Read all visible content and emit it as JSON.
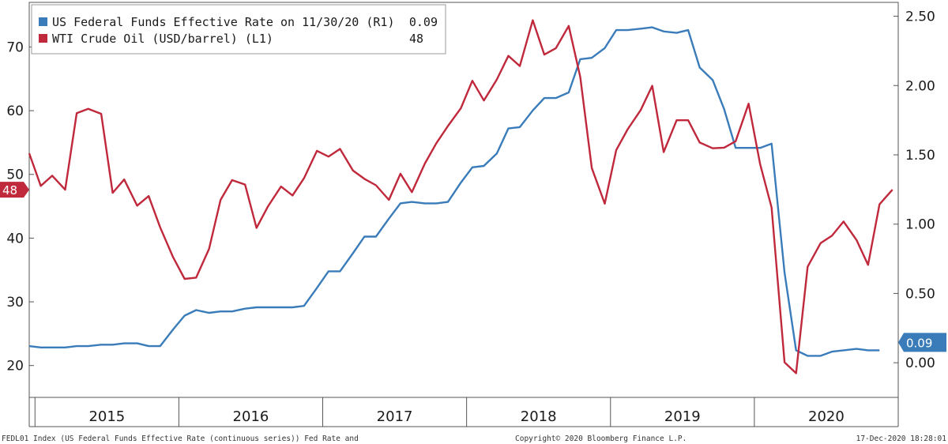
{
  "chart_data": {
    "type": "line",
    "legend_position": "top-left",
    "grid": false,
    "series": [
      {
        "name": "US Federal Funds Effective Rate on 11/30/20 (R1)",
        "legend_value": "0.09",
        "axis": "right",
        "color": "#3a7cba",
        "x": [
          2014.96,
          2015.04,
          2015.12,
          2015.21,
          2015.29,
          2015.37,
          2015.46,
          2015.54,
          2015.62,
          2015.71,
          2015.79,
          2015.87,
          2015.96,
          2016.04,
          2016.12,
          2016.21,
          2016.29,
          2016.37,
          2016.46,
          2016.54,
          2016.62,
          2016.71,
          2016.79,
          2016.87,
          2016.96,
          2017.04,
          2017.12,
          2017.21,
          2017.29,
          2017.37,
          2017.46,
          2017.54,
          2017.62,
          2017.71,
          2017.79,
          2017.87,
          2017.96,
          2018.04,
          2018.12,
          2018.21,
          2018.29,
          2018.37,
          2018.46,
          2018.54,
          2018.62,
          2018.71,
          2018.79,
          2018.87,
          2018.96,
          2019.04,
          2019.12,
          2019.21,
          2019.29,
          2019.37,
          2019.46,
          2019.54,
          2019.62,
          2019.71,
          2019.79,
          2019.87,
          2019.96,
          2020.04,
          2020.12,
          2020.21,
          2020.29,
          2020.37,
          2020.46,
          2020.54,
          2020.62,
          2020.71,
          2020.79,
          2020.87
        ],
        "values": [
          0.12,
          0.11,
          0.11,
          0.11,
          0.12,
          0.12,
          0.13,
          0.13,
          0.14,
          0.14,
          0.12,
          0.12,
          0.24,
          0.34,
          0.38,
          0.36,
          0.37,
          0.37,
          0.39,
          0.4,
          0.4,
          0.4,
          0.4,
          0.41,
          0.54,
          0.66,
          0.66,
          0.79,
          0.91,
          0.91,
          1.04,
          1.15,
          1.16,
          1.15,
          1.15,
          1.16,
          1.3,
          1.41,
          1.42,
          1.51,
          1.69,
          1.7,
          1.82,
          1.91,
          1.91,
          1.95,
          2.19,
          2.2,
          2.27,
          2.4,
          2.4,
          2.41,
          2.42,
          2.39,
          2.38,
          2.4,
          2.13,
          2.04,
          1.83,
          1.55,
          1.55,
          1.55,
          1.58,
          0.65,
          0.09,
          0.05,
          0.05,
          0.08,
          0.09,
          0.1,
          0.09,
          0.09
        ]
      },
      {
        "name": "WTI Crude Oil (USD/barrel) (L1)",
        "legend_value": "48",
        "axis": "left",
        "color": "#c0283b",
        "x": [
          2014.96,
          2015.04,
          2015.12,
          2015.21,
          2015.29,
          2015.37,
          2015.46,
          2015.54,
          2015.62,
          2015.71,
          2015.79,
          2015.87,
          2015.96,
          2016.04,
          2016.12,
          2016.21,
          2016.29,
          2016.37,
          2016.46,
          2016.54,
          2016.62,
          2016.71,
          2016.79,
          2016.87,
          2016.96,
          2017.04,
          2017.12,
          2017.21,
          2017.29,
          2017.37,
          2017.46,
          2017.54,
          2017.62,
          2017.71,
          2017.79,
          2017.87,
          2017.96,
          2018.04,
          2018.12,
          2018.21,
          2018.29,
          2018.37,
          2018.46,
          2018.54,
          2018.62,
          2018.71,
          2018.79,
          2018.87,
          2018.96,
          2019.04,
          2019.12,
          2019.21,
          2019.29,
          2019.37,
          2019.46,
          2019.54,
          2019.62,
          2019.71,
          2019.79,
          2019.87,
          2019.96,
          2020.04,
          2020.12,
          2020.21,
          2020.29,
          2020.37,
          2020.46,
          2020.54,
          2020.62,
          2020.71,
          2020.79,
          2020.87,
          2020.96
        ],
        "values": [
          53.3,
          48.2,
          49.8,
          47.6,
          59.6,
          60.3,
          59.5,
          47.1,
          49.2,
          45.1,
          46.6,
          41.7,
          37.0,
          33.6,
          33.8,
          38.3,
          46.0,
          49.1,
          48.4,
          41.6,
          45.0,
          48.1,
          46.7,
          49.4,
          53.7,
          52.8,
          54.0,
          50.6,
          49.3,
          48.3,
          46.0,
          50.1,
          47.2,
          51.7,
          54.9,
          57.6,
          60.4,
          64.7,
          61.6,
          64.9,
          68.6,
          67.0,
          74.2,
          68.8,
          69.8,
          73.3,
          65.3,
          51.0,
          45.4,
          53.8,
          57.1,
          60.1,
          63.9,
          53.5,
          58.5,
          58.5,
          55.0,
          54.1,
          54.2,
          55.2,
          61.1,
          51.6,
          44.8,
          20.5,
          18.8,
          35.5,
          39.2,
          40.4,
          42.6,
          39.7,
          35.8,
          45.3,
          47.6
        ]
      }
    ],
    "left_axis": {
      "ylim": [
        15,
        77
      ],
      "ticks": [
        20,
        30,
        40,
        50,
        60,
        70
      ],
      "tick_labels": [
        "20",
        "30",
        "40",
        "50",
        "60",
        "70"
      ]
    },
    "right_axis": {
      "ylim": [
        -0.25,
        2.6
      ],
      "ticks": [
        0,
        0.5,
        1,
        1.5,
        2,
        2.5
      ],
      "tick_labels": [
        "0.00",
        "0.50",
        "1.00",
        "1.50",
        "2.00",
        "2.50"
      ]
    },
    "x_axis": {
      "xlim": [
        2014.96,
        2021.0
      ],
      "year_ticks": [
        2015,
        2016,
        2017,
        2018,
        2019,
        2020,
        2021
      ],
      "year_labels": [
        "2015",
        "2016",
        "2017",
        "2018",
        "2019",
        "2020"
      ],
      "year_centers": [
        2015.5,
        2016.5,
        2017.5,
        2018.5,
        2019.5,
        2020.5
      ]
    },
    "badges": {
      "left": {
        "text": "48",
        "value": 47.6,
        "color": "#c0283b"
      },
      "right": {
        "text": "0.09",
        "value": 0.09,
        "color": "#3a7cba"
      }
    }
  },
  "footer": {
    "left": "FEDL01 Index (US Federal Funds Effective Rate (continuous series)) Fed Rate and",
    "center": "Copyright© 2020 Bloomberg Finance L.P.",
    "right": "17-Dec-2020 18:28:01"
  }
}
